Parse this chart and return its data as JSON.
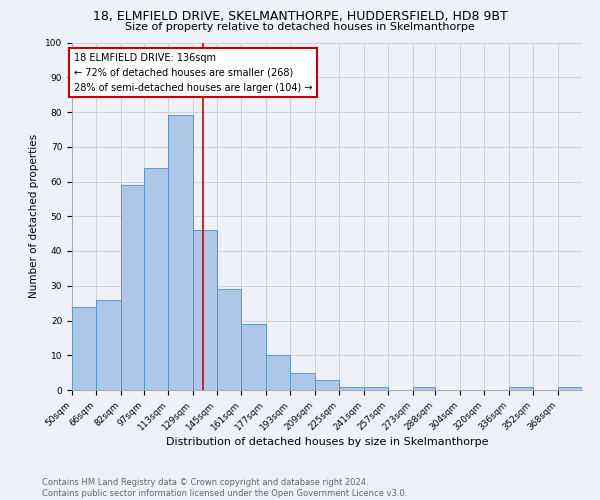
{
  "title1": "18, ELMFIELD DRIVE, SKELMANTHORPE, HUDDERSFIELD, HD8 9BT",
  "title2": "Size of property relative to detached houses in Skelmanthorpe",
  "xlabel": "Distribution of detached houses by size in Skelmanthorpe",
  "ylabel": "Number of detached properties",
  "footer1": "Contains HM Land Registry data © Crown copyright and database right 2024.",
  "footer2": "Contains public sector information licensed under the Open Government Licence v3.0.",
  "bin_labels": [
    "50sqm",
    "66sqm",
    "82sqm",
    "97sqm",
    "113sqm",
    "129sqm",
    "145sqm",
    "161sqm",
    "177sqm",
    "193sqm",
    "209sqm",
    "225sqm",
    "241sqm",
    "257sqm",
    "273sqm",
    "288sqm",
    "304sqm",
    "320sqm",
    "336sqm",
    "352sqm",
    "368sqm"
  ],
  "bar_heights": [
    24,
    26,
    59,
    64,
    79,
    46,
    29,
    19,
    10,
    5,
    3,
    1,
    1,
    0,
    1,
    0,
    0,
    0,
    1,
    0,
    1
  ],
  "bar_color": "#aec6e8",
  "bar_edge_color": "#4a90c4",
  "bin_edges": [
    50,
    66,
    82,
    97,
    113,
    129,
    145,
    161,
    177,
    193,
    209,
    225,
    241,
    257,
    273,
    288,
    304,
    320,
    336,
    352,
    368,
    384
  ],
  "annotation_text": "18 ELMFIELD DRIVE: 136sqm\n← 72% of detached houses are smaller (268)\n28% of semi-detached houses are larger (104) →",
  "annotation_box_color": "#ffffff",
  "annotation_box_edge_color": "#cc0000",
  "vline_color": "#cc0000",
  "grid_color": "#cccccc",
  "yticks": [
    0,
    10,
    20,
    30,
    40,
    50,
    60,
    70,
    80,
    90,
    100
  ],
  "ylim": [
    0,
    100
  ],
  "bg_color": "#eef2f8",
  "title1_fontsize": 9,
  "title2_fontsize": 8,
  "ylabel_fontsize": 7.5,
  "xlabel_fontsize": 8,
  "tick_fontsize": 6.5,
  "annot_fontsize": 7,
  "footer_fontsize": 6
}
